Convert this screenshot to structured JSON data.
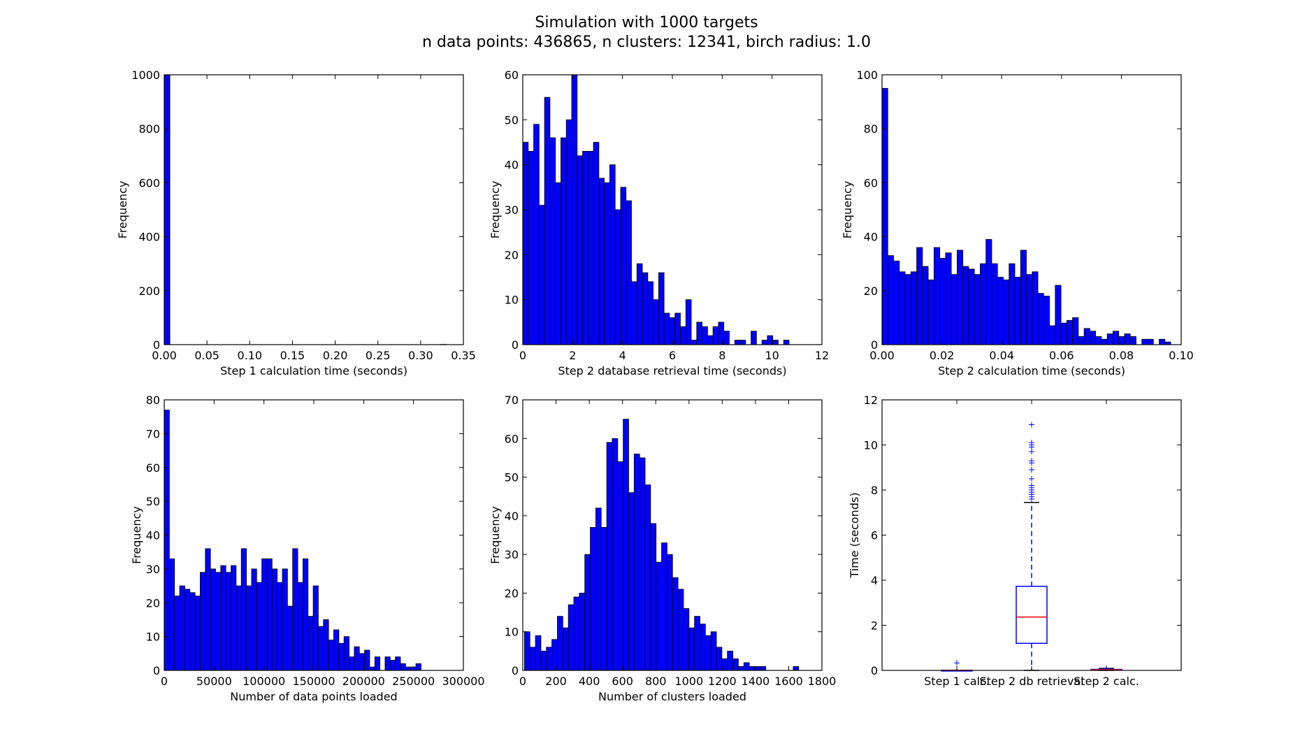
{
  "figure": {
    "title": "Simulation with 1000 targets",
    "subtitle": "n data points: 436865,  n clusters: 12341,  birch radius: 1.0"
  },
  "colors": {
    "bar": "#0000ff",
    "box": "#0000ff",
    "median": "#ff0000"
  },
  "chart_data": [
    {
      "type": "bar",
      "title": "",
      "xlabel": "Step 1 calculation time (seconds)",
      "ylabel": "Frequency",
      "xlim": [
        0,
        0.35
      ],
      "ylim": [
        0,
        1000
      ],
      "xticks": [
        0,
        0.05,
        0.1,
        0.15,
        0.2,
        0.25,
        0.3,
        0.35
      ],
      "xtick_labels": [
        "0.00",
        "0.05",
        "0.10",
        "0.15",
        "0.20",
        "0.25",
        "0.30",
        "0.35"
      ],
      "yticks": [
        0,
        200,
        400,
        600,
        800,
        1000
      ],
      "ytick_labels": [
        "0",
        "200",
        "400",
        "600",
        "800",
        "1000"
      ],
      "bin_start": 0,
      "bin_width": 0.0066,
      "values": [
        999,
        0,
        0,
        0,
        0,
        0,
        0,
        0,
        0,
        0,
        0,
        0,
        0,
        0,
        0,
        0,
        0,
        0,
        0,
        0,
        0,
        0,
        0,
        0,
        0,
        0,
        0,
        0,
        0,
        0,
        0,
        0,
        0,
        0,
        0,
        0,
        0,
        0,
        0,
        0,
        0,
        0,
        0,
        0,
        0,
        0,
        0,
        0,
        0,
        1
      ]
    },
    {
      "type": "bar",
      "title": "",
      "xlabel": "Step 2 database retrieval time (seconds)",
      "ylabel": "Frequency",
      "xlim": [
        0,
        12
      ],
      "ylim": [
        0,
        60
      ],
      "xticks": [
        0,
        2,
        4,
        6,
        8,
        10,
        12
      ],
      "xtick_labels": [
        "0",
        "2",
        "4",
        "6",
        "8",
        "10",
        "12"
      ],
      "yticks": [
        0,
        10,
        20,
        30,
        40,
        50,
        60
      ],
      "ytick_labels": [
        "0",
        "10",
        "20",
        "30",
        "40",
        "50",
        "60"
      ],
      "bin_start": 0,
      "bin_width": 0.218,
      "values": [
        45,
        43,
        49,
        31,
        55,
        46,
        36,
        46,
        50,
        60,
        42,
        43,
        43,
        45,
        37,
        36,
        40,
        30,
        35,
        32,
        14,
        18,
        16,
        14,
        10,
        16,
        7,
        6,
        7,
        4,
        10,
        1,
        5,
        4,
        2,
        4,
        5,
        3,
        0,
        1,
        1,
        0,
        3,
        0,
        1,
        2,
        1,
        0,
        1,
        0
      ]
    },
    {
      "type": "bar",
      "title": "",
      "xlabel": "Step 2 calculation time (seconds)",
      "ylabel": "Frequency",
      "xlim": [
        0,
        0.1
      ],
      "ylim": [
        0,
        100
      ],
      "xticks": [
        0,
        0.02,
        0.04,
        0.06,
        0.08,
        0.1
      ],
      "xtick_labels": [
        "0.00",
        "0.02",
        "0.04",
        "0.06",
        "0.08",
        "0.10"
      ],
      "yticks": [
        0,
        20,
        40,
        60,
        80,
        100
      ],
      "ytick_labels": [
        "0",
        "20",
        "40",
        "60",
        "80",
        "100"
      ],
      "bin_start": 0,
      "bin_width": 0.00193,
      "values": [
        95,
        33,
        31,
        27,
        26,
        27,
        36,
        29,
        24,
        36,
        32,
        34,
        26,
        35,
        29,
        28,
        26,
        30,
        39,
        30,
        25,
        24,
        30,
        25,
        35,
        26,
        27,
        19,
        18,
        7,
        22,
        8,
        9,
        10,
        3,
        6,
        5,
        3,
        2,
        4,
        5,
        3,
        4,
        3,
        0,
        2,
        2,
        0,
        2,
        1
      ]
    },
    {
      "type": "bar",
      "title": "",
      "xlabel": "Number of data points loaded",
      "ylabel": "Frequency",
      "xlim": [
        0,
        300000
      ],
      "ylim": [
        0,
        80
      ],
      "xticks": [
        0,
        50000,
        100000,
        150000,
        200000,
        250000,
        300000
      ],
      "xtick_labels": [
        "0",
        "50000",
        "100000",
        "150000",
        "200000",
        "250000",
        "300000"
      ],
      "yticks": [
        0,
        10,
        20,
        30,
        40,
        50,
        60,
        70,
        80
      ],
      "ytick_labels": [
        "0",
        "10",
        "20",
        "30",
        "40",
        "50",
        "60",
        "70",
        "80"
      ],
      "bin_start": 0,
      "bin_width": 5150,
      "values": [
        77,
        33,
        22,
        25,
        24,
        23,
        22,
        29,
        36,
        30,
        29,
        31,
        29,
        31,
        25,
        36,
        25,
        30,
        26,
        33,
        33,
        30,
        26,
        30,
        19,
        36,
        26,
        33,
        16,
        25,
        13,
        15,
        9,
        12,
        8,
        10,
        4,
        7,
        5,
        6,
        1,
        4,
        0,
        4,
        3,
        4,
        2,
        1,
        1,
        2
      ]
    },
    {
      "type": "bar",
      "title": "",
      "xlabel": "Number of clusters loaded",
      "ylabel": "Frequency",
      "xlim": [
        0,
        1800
      ],
      "ylim": [
        0,
        70
      ],
      "xticks": [
        0,
        200,
        400,
        600,
        800,
        1000,
        1200,
        1400,
        1600,
        1800
      ],
      "xtick_labels": [
        "0",
        "200",
        "400",
        "600",
        "800",
        "1000",
        "1200",
        "1400",
        "1600",
        "1800"
      ],
      "yticks": [
        0,
        10,
        20,
        30,
        40,
        50,
        60,
        70
      ],
      "ytick_labels": [
        "0",
        "10",
        "20",
        "30",
        "40",
        "50",
        "60",
        "70"
      ],
      "bin_start": 10,
      "bin_width": 33,
      "values": [
        10,
        6,
        9,
        5,
        6,
        8,
        14,
        11,
        17,
        19,
        20,
        30,
        37,
        42,
        37,
        59,
        60,
        54,
        65,
        46,
        56,
        55,
        48,
        38,
        28,
        33,
        30,
        24,
        21,
        16,
        11,
        14,
        12,
        9,
        10,
        6,
        3,
        5,
        3,
        1,
        2,
        1,
        1,
        1,
        0,
        0,
        0,
        0,
        0,
        1
      ]
    },
    {
      "type": "box",
      "title": "",
      "xlabel": "",
      "ylabel": "Time (seconds)",
      "ylim": [
        0,
        12
      ],
      "yticks": [
        0,
        2,
        4,
        6,
        8,
        10,
        12
      ],
      "ytick_labels": [
        "0",
        "2",
        "4",
        "6",
        "8",
        "10",
        "12"
      ],
      "categories": [
        "Step 1 calc.",
        "Step 2 db retrieval",
        "Step 2 calc."
      ],
      "boxes": [
        {
          "q1": 0.001,
          "median": 0.002,
          "q3": 0.003,
          "whisker_low": 0.0,
          "whisker_high": 0.005,
          "outliers": [
            0.33
          ]
        },
        {
          "q1": 1.2,
          "median": 2.37,
          "q3": 3.73,
          "whisker_low": 0.0,
          "whisker_high": 7.45,
          "outliers": [
            7.6,
            7.7,
            7.8,
            7.9,
            8.0,
            8.1,
            8.2,
            8.5,
            8.9,
            9.2,
            9.3,
            9.7,
            9.9,
            10.0,
            10.1,
            10.9
          ]
        },
        {
          "q1": 0.012,
          "median": 0.026,
          "q3": 0.045,
          "whisker_low": 0.0,
          "whisker_high": 0.09,
          "outliers": [
            0.095
          ]
        }
      ]
    }
  ]
}
